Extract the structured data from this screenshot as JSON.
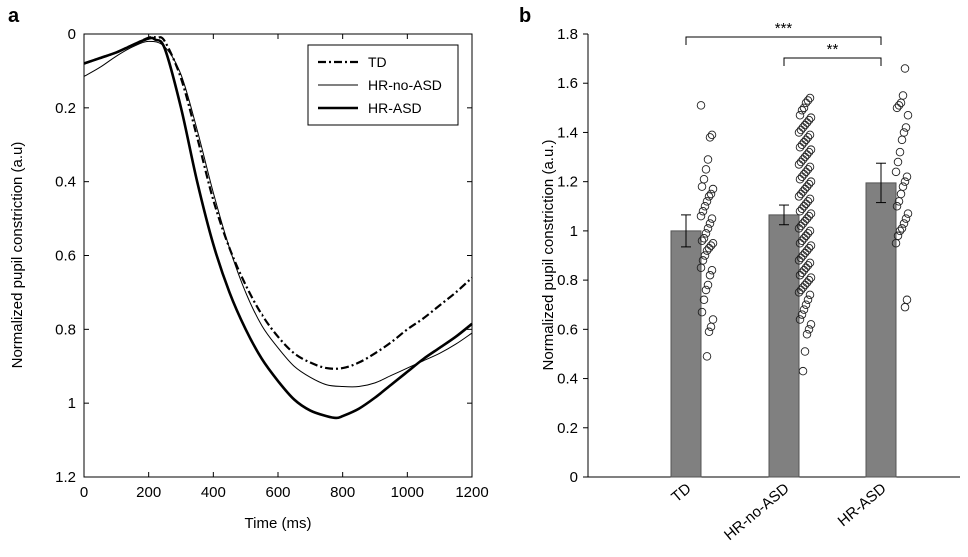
{
  "chart_data": [
    {
      "panel_label": "a",
      "type": "line",
      "xlabel": "Time (ms)",
      "ylabel": "Normalized pupil constriction (a.u)",
      "xlim": [
        0,
        1200
      ],
      "ylim": [
        0,
        1.2
      ],
      "y_inverted": true,
      "xticks": [
        0,
        200,
        400,
        600,
        800,
        1000,
        1200
      ],
      "yticks": [
        0,
        0.2,
        0.4,
        0.6,
        0.8,
        1,
        1.2
      ],
      "xtick_labels": [
        "0",
        "200",
        "400",
        "600",
        "800",
        "1000",
        "1200"
      ],
      "ytick_labels": [
        "0",
        "0.2",
        "0.4",
        "0.6",
        "0.8",
        "1",
        "1.2"
      ],
      "legend_position": "top-right",
      "series": [
        {
          "name": "TD",
          "style": "dash-dot",
          "x": [
            0,
            50,
            100,
            150,
            200,
            225,
            250,
            300,
            350,
            400,
            450,
            500,
            550,
            600,
            650,
            700,
            750,
            800,
            850,
            900,
            950,
            1000,
            1050,
            1100,
            1150,
            1200
          ],
          "y": [
            0.08,
            0.065,
            0.05,
            0.03,
            0.01,
            0.01,
            0.02,
            0.12,
            0.28,
            0.45,
            0.58,
            0.68,
            0.76,
            0.82,
            0.865,
            0.89,
            0.905,
            0.905,
            0.89,
            0.865,
            0.835,
            0.8,
            0.77,
            0.735,
            0.7,
            0.66
          ]
        },
        {
          "name": "HR-no-ASD",
          "style": "thin",
          "x": [
            0,
            50,
            100,
            150,
            200,
            250,
            300,
            350,
            400,
            450,
            500,
            550,
            600,
            650,
            700,
            750,
            800,
            850,
            900,
            950,
            1000,
            1050,
            1100,
            1150,
            1200
          ],
          "y": [
            0.115,
            0.09,
            0.06,
            0.035,
            0.02,
            0.035,
            0.11,
            0.26,
            0.43,
            0.58,
            0.7,
            0.79,
            0.85,
            0.9,
            0.93,
            0.95,
            0.955,
            0.955,
            0.945,
            0.925,
            0.905,
            0.885,
            0.865,
            0.84,
            0.81
          ]
        },
        {
          "name": "HR-ASD",
          "style": "thick",
          "x": [
            0,
            50,
            100,
            150,
            200,
            220,
            250,
            300,
            350,
            400,
            450,
            500,
            550,
            600,
            650,
            700,
            750,
            780,
            800,
            850,
            900,
            950,
            1000,
            1050,
            1100,
            1150,
            1200
          ],
          "y": [
            0.08,
            0.065,
            0.05,
            0.03,
            0.012,
            0.015,
            0.04,
            0.2,
            0.4,
            0.57,
            0.7,
            0.8,
            0.88,
            0.94,
            0.99,
            1.02,
            1.035,
            1.04,
            1.035,
            1.015,
            0.985,
            0.95,
            0.915,
            0.88,
            0.85,
            0.82,
            0.785
          ]
        }
      ]
    },
    {
      "panel_label": "b",
      "type": "bar",
      "ylabel": "Normalized pupil constriction (a.u.)",
      "ylim": [
        0,
        1.8
      ],
      "yticks": [
        0,
        0.2,
        0.4,
        0.6,
        0.8,
        1,
        1.2,
        1.4,
        1.6,
        1.8
      ],
      "ytick_labels": [
        "0",
        "0.2",
        "0.4",
        "0.6",
        "0.8",
        "1",
        "1.2",
        "1.4",
        "1.6",
        "1.8"
      ],
      "categories": [
        "TD",
        "HR-no-ASD",
        "HR-ASD"
      ],
      "values": [
        1.0,
        1.065,
        1.195
      ],
      "error_low": [
        0.935,
        1.025,
        1.115
      ],
      "error_high": [
        1.065,
        1.105,
        1.275
      ],
      "bar_color": "#808080",
      "significance": [
        {
          "from": 0,
          "to": 2,
          "label": "***"
        },
        {
          "from": 1,
          "to": 2,
          "label": "**"
        }
      ],
      "points": [
        [
          1.51,
          1.39,
          1.38,
          1.29,
          1.25,
          1.21,
          1.18,
          1.17,
          1.15,
          1.14,
          1.12,
          1.1,
          1.08,
          1.06,
          1.05,
          1.03,
          1.01,
          0.99,
          0.97,
          0.96,
          0.95,
          0.94,
          0.93,
          0.92,
          0.9,
          0.88,
          0.85,
          0.84,
          0.82,
          0.78,
          0.76,
          0.72,
          0.67,
          0.64,
          0.61,
          0.59,
          0.49
        ],
        [
          1.54,
          1.53,
          1.52,
          1.5,
          1.49,
          1.47,
          1.46,
          1.45,
          1.44,
          1.43,
          1.42,
          1.41,
          1.4,
          1.39,
          1.38,
          1.37,
          1.36,
          1.35,
          1.34,
          1.33,
          1.32,
          1.31,
          1.3,
          1.29,
          1.28,
          1.27,
          1.26,
          1.25,
          1.24,
          1.23,
          1.22,
          1.21,
          1.2,
          1.19,
          1.18,
          1.17,
          1.16,
          1.15,
          1.14,
          1.13,
          1.12,
          1.11,
          1.1,
          1.09,
          1.08,
          1.07,
          1.06,
          1.05,
          1.04,
          1.03,
          1.02,
          1.01,
          1.0,
          0.99,
          0.98,
          0.97,
          0.96,
          0.95,
          0.94,
          0.93,
          0.92,
          0.91,
          0.9,
          0.89,
          0.88,
          0.87,
          0.86,
          0.85,
          0.84,
          0.83,
          0.82,
          0.81,
          0.8,
          0.79,
          0.78,
          0.77,
          0.76,
          0.75,
          0.74,
          0.72,
          0.7,
          0.68,
          0.66,
          0.64,
          0.62,
          0.6,
          0.58,
          0.51,
          0.43
        ],
        [
          1.66,
          1.55,
          1.52,
          1.51,
          1.5,
          1.47,
          1.42,
          1.4,
          1.37,
          1.32,
          1.28,
          1.24,
          1.22,
          1.2,
          1.18,
          1.15,
          1.12,
          1.1,
          1.07,
          1.05,
          1.03,
          1.01,
          1.0,
          0.98,
          0.95,
          0.72,
          0.69
        ]
      ]
    }
  ]
}
